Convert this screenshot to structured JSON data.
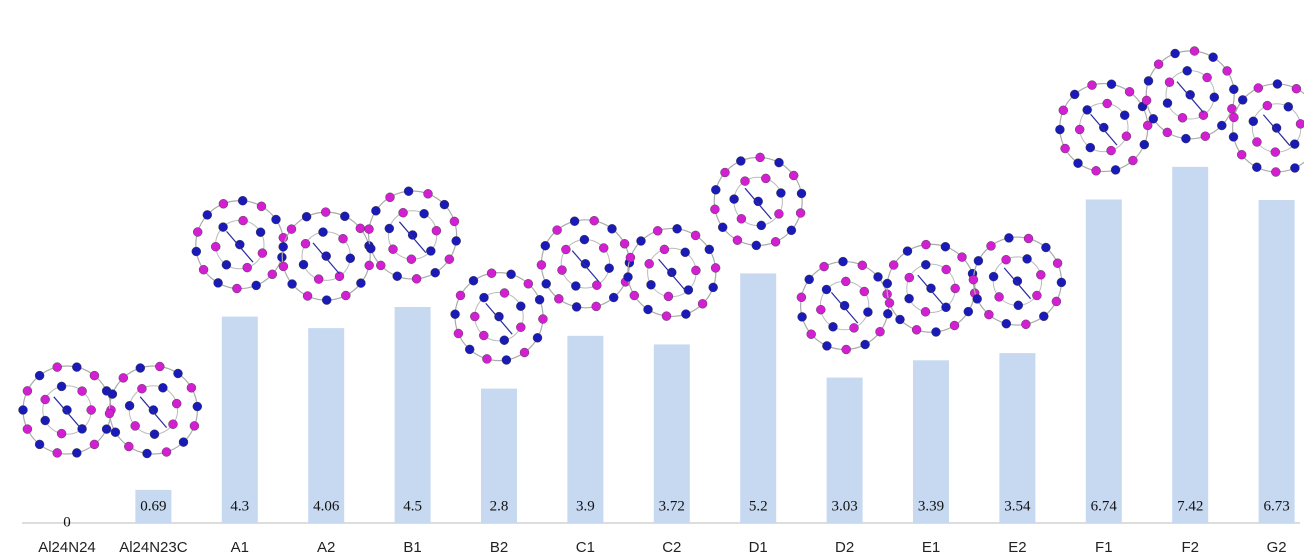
{
  "chart_data": {
    "type": "bar",
    "categories": [
      "Al24N24",
      "Al24N23C",
      "A1",
      "A2",
      "B1",
      "B2",
      "C1",
      "C2",
      "D1",
      "D2",
      "E1",
      "E2",
      "F1",
      "F2",
      "G2"
    ],
    "values": [
      0,
      0.69,
      4.3,
      4.06,
      4.5,
      2.8,
      3.9,
      3.72,
      5.2,
      3.03,
      3.39,
      3.54,
      6.74,
      7.42,
      6.73
    ],
    "color": "#c6d9f1"
  }
}
